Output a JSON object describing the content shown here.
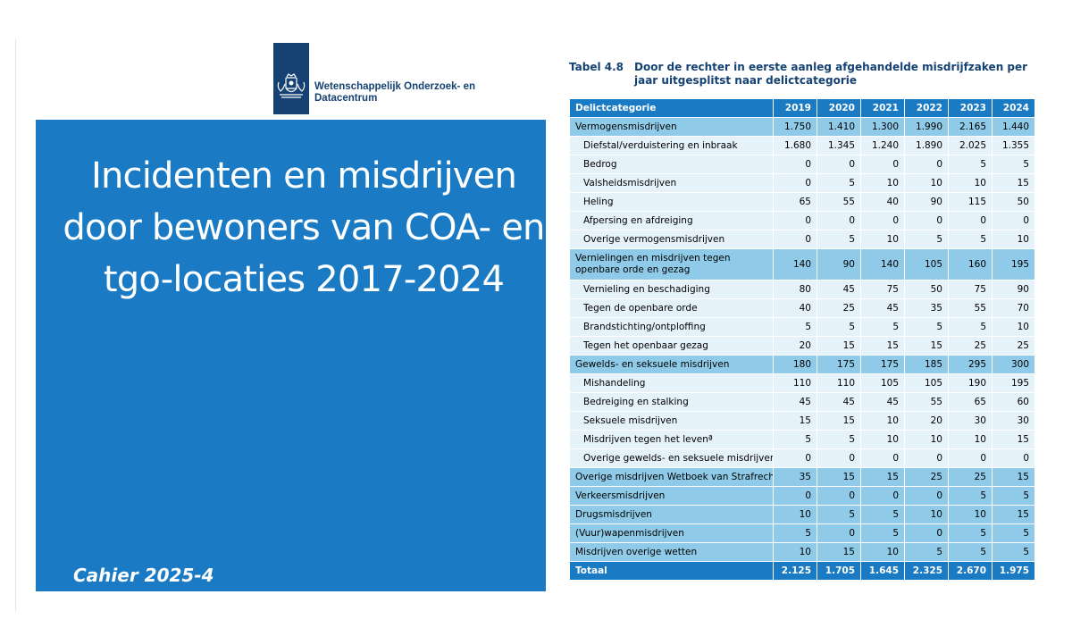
{
  "logo": {
    "org_line1": "Wetenschappelijk Onderzoek- en",
    "org_line2": "Datacentrum"
  },
  "cover": {
    "title_lines": [
      "Incidenten en misdrijven",
      "door bewoners van COA- en",
      "tgo-locaties 2017-2024"
    ],
    "series": "Cahier 2025-4",
    "color": "#1a7bc4"
  },
  "table": {
    "number": "Tabel 4.8",
    "caption": "Door de rechter in eerste aanleg afgehandelde misdrijfzaken per jaar uitgesplitst naar delictcategorie",
    "headers": [
      "Delictcategorie",
      "2019",
      "2020",
      "2021",
      "2022",
      "2023",
      "2024"
    ],
    "rows": [
      {
        "type": "cat",
        "label": "Vermogensmisdrijven",
        "values": [
          "1.750",
          "1.410",
          "1.300",
          "1.990",
          "2.165",
          "1.440"
        ]
      },
      {
        "type": "sub",
        "label": "Diefstal/verduistering en inbraak",
        "values": [
          "1.680",
          "1.345",
          "1.240",
          "1.890",
          "2.025",
          "1.355"
        ]
      },
      {
        "type": "sub",
        "label": "Bedrog",
        "values": [
          "0",
          "0",
          "0",
          "0",
          "5",
          "5"
        ]
      },
      {
        "type": "sub",
        "label": "Valsheidsmisdrijven",
        "values": [
          "0",
          "5",
          "10",
          "10",
          "10",
          "15"
        ]
      },
      {
        "type": "sub",
        "label": "Heling",
        "values": [
          "65",
          "55",
          "40",
          "90",
          "115",
          "50"
        ]
      },
      {
        "type": "sub",
        "label": "Afpersing en afdreiging",
        "values": [
          "0",
          "0",
          "0",
          "0",
          "0",
          "0"
        ]
      },
      {
        "type": "sub",
        "label": "Overige vermogensmisdrijven",
        "values": [
          "0",
          "5",
          "10",
          "5",
          "5",
          "10"
        ]
      },
      {
        "type": "cat",
        "wrap": true,
        "label": "Vernielingen en misdrijven tegen openbare orde en gezag",
        "values": [
          "140",
          "90",
          "140",
          "105",
          "160",
          "195"
        ]
      },
      {
        "type": "sub",
        "label": "Vernieling en beschadiging",
        "values": [
          "80",
          "45",
          "75",
          "50",
          "75",
          "90"
        ]
      },
      {
        "type": "sub",
        "label": "Tegen de openbare orde",
        "values": [
          "40",
          "25",
          "45",
          "35",
          "55",
          "70"
        ]
      },
      {
        "type": "sub",
        "label": "Brandstichting/ontploffing",
        "values": [
          "5",
          "5",
          "5",
          "5",
          "5",
          "10"
        ]
      },
      {
        "type": "sub",
        "label": "Tegen het openbaar gezag",
        "values": [
          "20",
          "15",
          "15",
          "15",
          "25",
          "25"
        ]
      },
      {
        "type": "cat",
        "label": "Gewelds- en seksuele misdrijven",
        "values": [
          "180",
          "175",
          "175",
          "185",
          "295",
          "300"
        ]
      },
      {
        "type": "sub",
        "label": "Mishandeling",
        "values": [
          "110",
          "110",
          "105",
          "105",
          "190",
          "195"
        ]
      },
      {
        "type": "sub",
        "label": "Bedreiging en stalking",
        "values": [
          "45",
          "45",
          "45",
          "55",
          "65",
          "60"
        ]
      },
      {
        "type": "sub",
        "label": "Seksuele misdrijven",
        "values": [
          "15",
          "15",
          "10",
          "20",
          "30",
          "30"
        ]
      },
      {
        "type": "sub",
        "label": "Misdrijven tegen het levenª",
        "values": [
          "5",
          "5",
          "10",
          "10",
          "10",
          "15"
        ]
      },
      {
        "type": "sub",
        "label": "Overige gewelds- en seksuele misdrijven",
        "values": [
          "0",
          "0",
          "0",
          "0",
          "0",
          "0"
        ]
      },
      {
        "type": "cat",
        "label": "Overige misdrijven Wetboek van Strafrecht",
        "values": [
          "35",
          "15",
          "15",
          "25",
          "25",
          "15"
        ]
      },
      {
        "type": "cat",
        "label": "Verkeersmisdrijven",
        "values": [
          "0",
          "0",
          "0",
          "0",
          "5",
          "5"
        ]
      },
      {
        "type": "cat",
        "label": "Drugsmisdrijven",
        "values": [
          "10",
          "5",
          "5",
          "10",
          "10",
          "15"
        ]
      },
      {
        "type": "cat",
        "label": "(Vuur)wapenmisdrijven",
        "values": [
          "5",
          "0",
          "5",
          "0",
          "5",
          "5"
        ]
      },
      {
        "type": "cat",
        "label": "Misdrijven overige wetten",
        "values": [
          "10",
          "15",
          "10",
          "5",
          "5",
          "5"
        ]
      },
      {
        "type": "total",
        "label": "Totaal",
        "values": [
          "2.125",
          "1.705",
          "1.645",
          "2.325",
          "2.670",
          "1.975"
        ]
      }
    ]
  }
}
